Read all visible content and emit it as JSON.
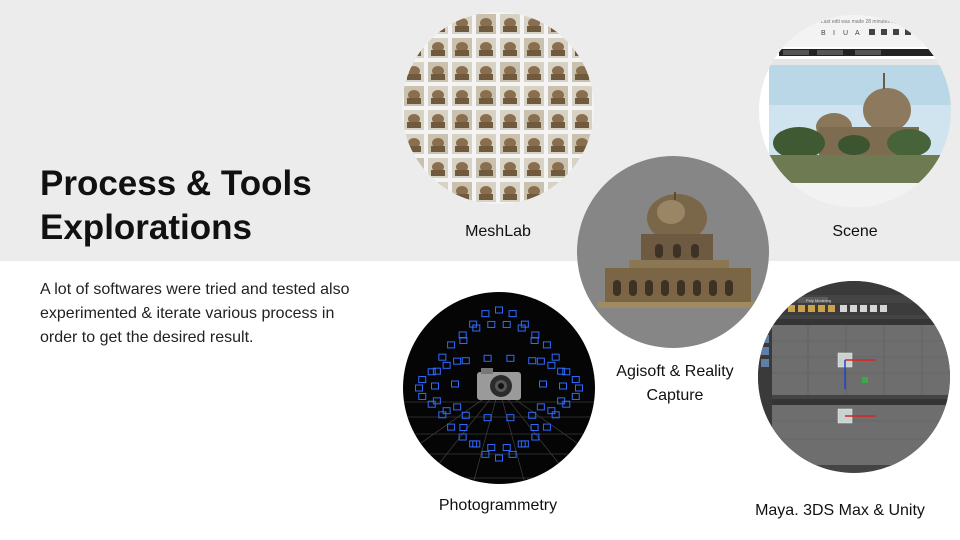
{
  "slide": {
    "title_line1": "Process & Tools",
    "title_line2": "Explorations",
    "description": "A lot of softwares were tried and tested also experimented & iterate various process in order to get the desired result."
  },
  "tools": {
    "meshlab": "MeshLab",
    "scene": "Scene",
    "agisoft_line1": "Agisoft & Reality",
    "agisoft_line2": "Capture",
    "photogrammetry": "Photogrammetry",
    "maya": "Maya. 3DS Max & Unity"
  },
  "scene_toolbar_text": "Last edit was made 28 minutes ago",
  "maya_menu_text": "Poly Modeling",
  "colors": {
    "band": "#ececec",
    "title": "#111111",
    "text": "#222222"
  }
}
